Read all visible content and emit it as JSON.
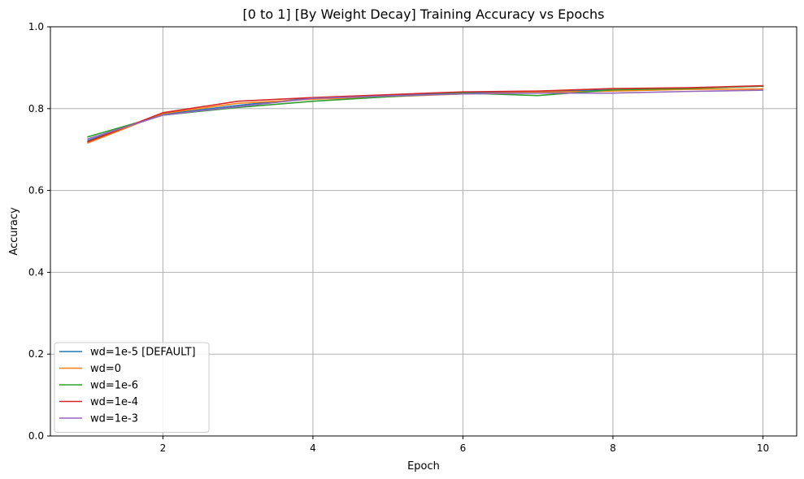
{
  "chart_data": {
    "type": "line",
    "title": "[0 to 1] [By Weight Decay] Training Accuracy vs Epochs",
    "xlabel": "Epoch",
    "ylabel": "Accuracy",
    "xlim": [
      0.5,
      10.45
    ],
    "ylim": [
      0,
      1
    ],
    "xticks": [
      2,
      4,
      6,
      8,
      10
    ],
    "yticks": [
      0.0,
      0.2,
      0.4,
      0.6,
      0.8,
      1.0
    ],
    "xtick_labels": [
      "2",
      "4",
      "6",
      "8",
      "10"
    ],
    "ytick_labels": [
      "0.0",
      "0.2",
      "0.4",
      "0.6",
      "0.8",
      "1.0"
    ],
    "grid": true,
    "legend_position": "lower-left",
    "x": [
      1,
      2,
      3,
      4,
      5,
      6,
      7,
      8,
      9,
      10
    ],
    "series": [
      {
        "name": "wd=1e-5 [DEFAULT]",
        "color": "#1f77b4",
        "values": [
          0.722,
          0.786,
          0.808,
          0.826,
          0.833,
          0.839,
          0.841,
          0.846,
          0.85,
          0.855
        ]
      },
      {
        "name": "wd=0",
        "color": "#ff7f0e",
        "values": [
          0.716,
          0.788,
          0.813,
          0.823,
          0.829,
          0.836,
          0.84,
          0.843,
          0.847,
          0.848
        ]
      },
      {
        "name": "wd=1e-6",
        "color": "#2ca02c",
        "values": [
          0.731,
          0.784,
          0.803,
          0.818,
          0.829,
          0.838,
          0.832,
          0.846,
          0.849,
          0.855
        ]
      },
      {
        "name": "wd=1e-4",
        "color": "#d62728",
        "values": [
          0.719,
          0.79,
          0.818,
          0.827,
          0.834,
          0.841,
          0.843,
          0.849,
          0.851,
          0.856
        ]
      },
      {
        "name": "wd=1e-3",
        "color": "#9467bd",
        "values": [
          0.726,
          0.784,
          0.805,
          0.825,
          0.831,
          0.836,
          0.838,
          0.838,
          0.842,
          0.845
        ]
      }
    ]
  }
}
